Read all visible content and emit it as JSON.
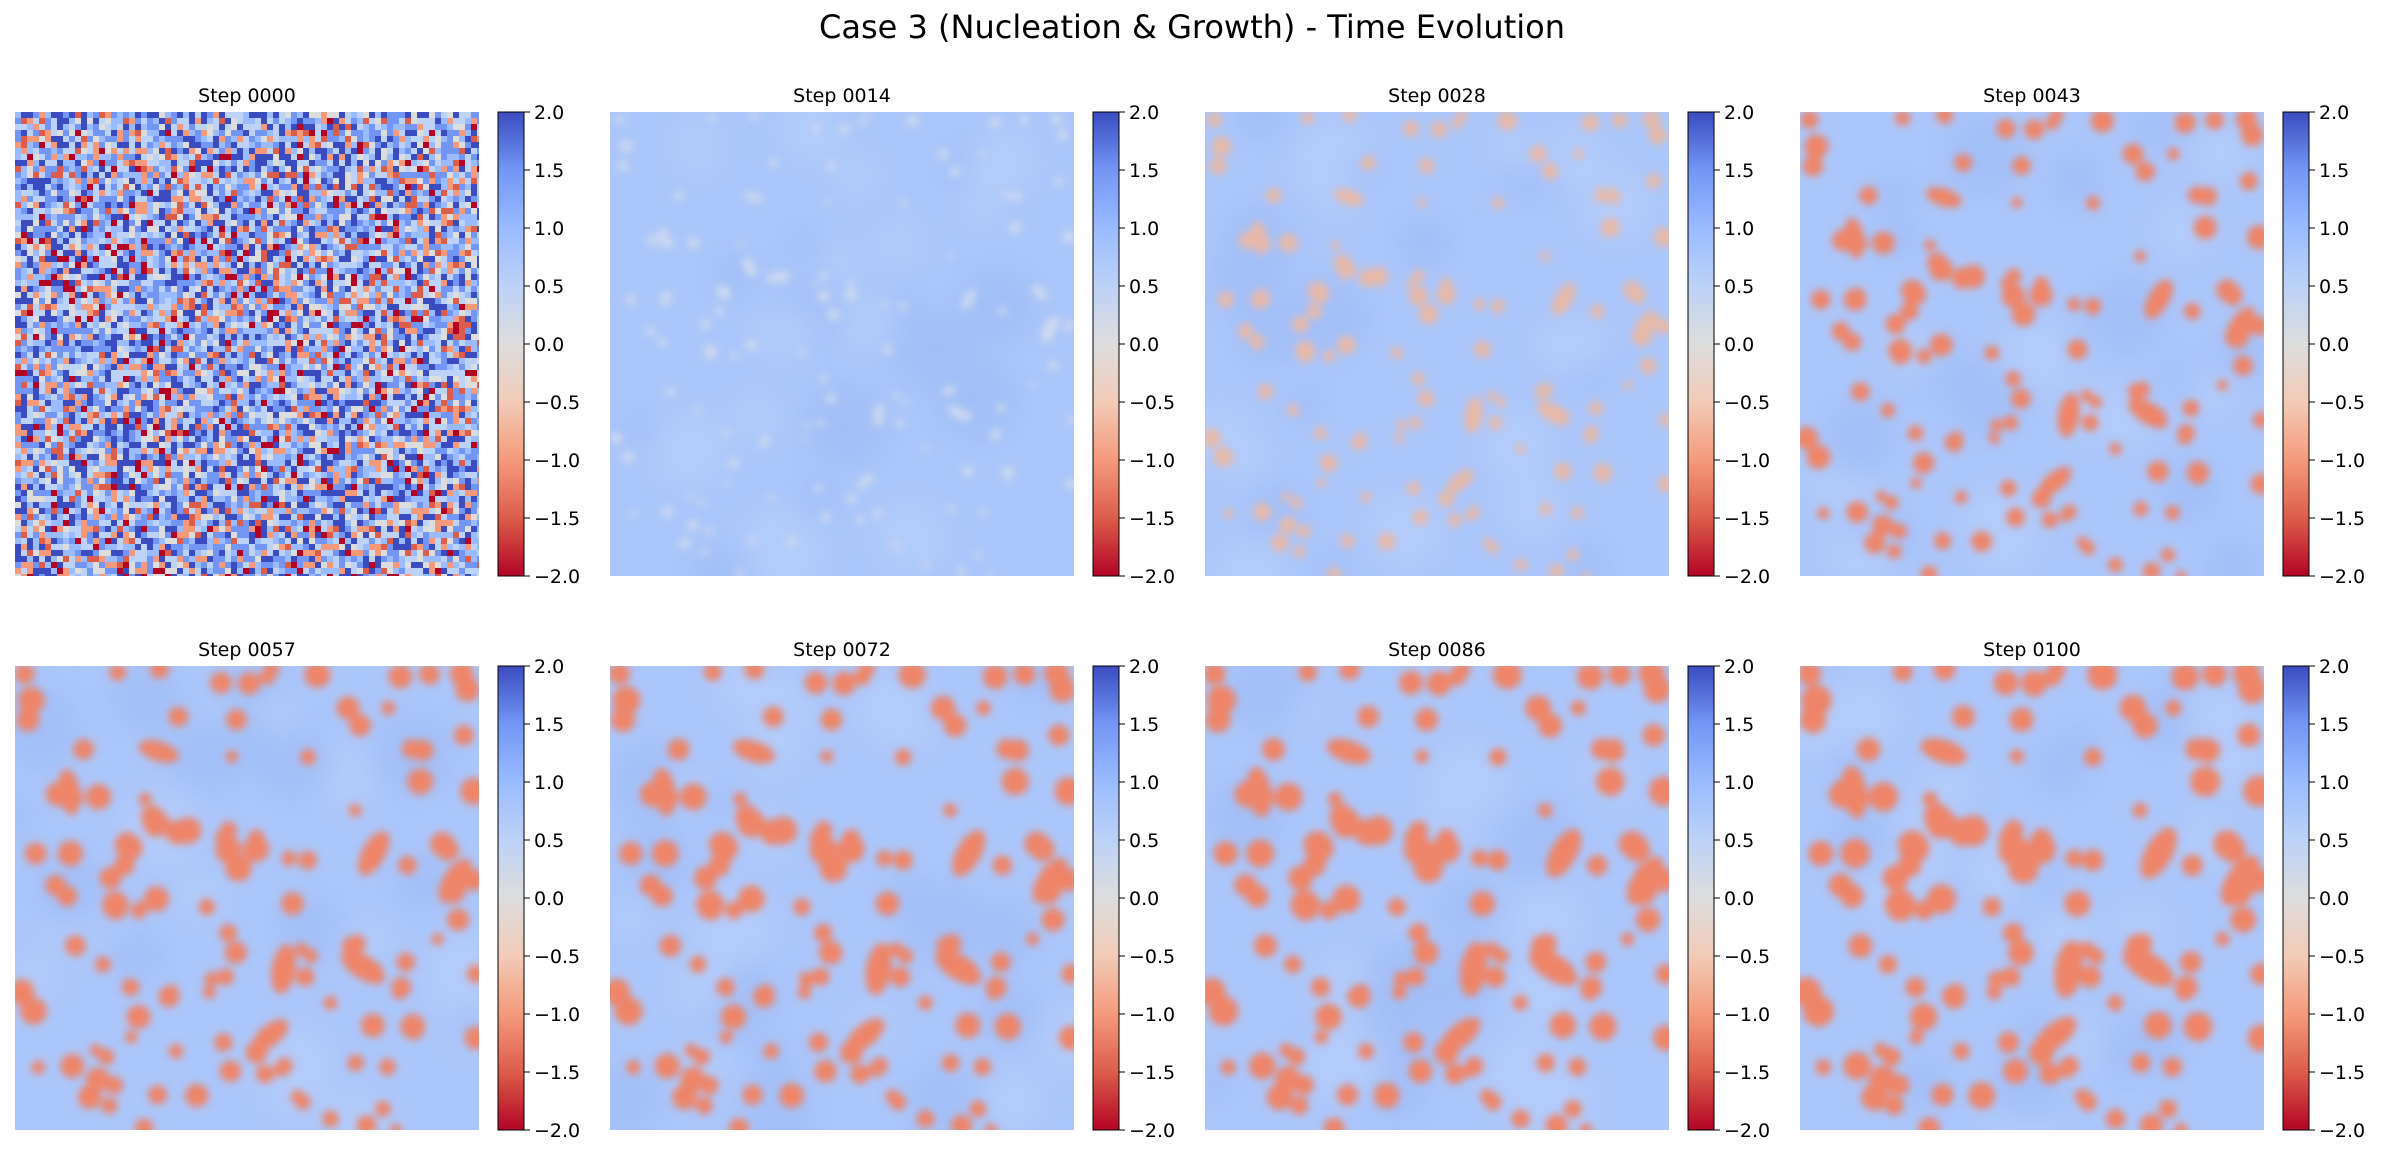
{
  "figure": {
    "title": "Case 3 (Nucleation & Growth) - Time Evolution"
  },
  "colors": {
    "colormap": "coolwarm_r",
    "colormap_stops": [
      "#b40426",
      "#dc5d4a",
      "#f49a7b",
      "#f2cbb7",
      "#dddddd",
      "#bcd2f7",
      "#9abbff",
      "#7396f5",
      "#3b4cc0"
    ],
    "background_phase": "#abc6fa",
    "particle": "#ee8468"
  },
  "chart_data": [
    {
      "type": "heatmap",
      "title": "Step 0000",
      "state": "random noise",
      "colorbar": {
        "vmin": -2.0,
        "vmax": 2.0,
        "ticks": [
          "2.0",
          "1.5",
          "1.0",
          "0.5",
          "0.0",
          "−0.5",
          "−1.0",
          "−1.5",
          "−2.0"
        ]
      },
      "grid": false
    },
    {
      "type": "heatmap",
      "title": "Step 0014",
      "state": "early nucleation",
      "colorbar": {
        "vmin": -2.0,
        "vmax": 2.0,
        "ticks": [
          "2.0",
          "1.5",
          "1.0",
          "0.5",
          "0.0",
          "−0.5",
          "−1.0",
          "−1.5",
          "−2.0"
        ]
      },
      "grid": false
    },
    {
      "type": "heatmap",
      "title": "Step 0028",
      "state": "nucleation",
      "colorbar": {
        "vmin": -2.0,
        "vmax": 2.0,
        "ticks": [
          "2.0",
          "1.5",
          "1.0",
          "0.5",
          "0.0",
          "−0.5",
          "−1.0",
          "−1.5",
          "−2.0"
        ]
      },
      "grid": false
    },
    {
      "type": "heatmap",
      "title": "Step 0043",
      "state": "growth",
      "colorbar": {
        "vmin": -2.0,
        "vmax": 2.0,
        "ticks": [
          "2.0",
          "1.5",
          "1.0",
          "0.5",
          "0.0",
          "−0.5",
          "−1.0",
          "−1.5",
          "−2.0"
        ]
      },
      "grid": false
    },
    {
      "type": "heatmap",
      "title": "Step 0057",
      "state": "growth",
      "colorbar": {
        "vmin": -2.0,
        "vmax": 2.0,
        "ticks": [
          "2.0",
          "1.5",
          "1.0",
          "0.5",
          "0.0",
          "−0.5",
          "−1.0",
          "−1.5",
          "−2.0"
        ]
      },
      "grid": false
    },
    {
      "type": "heatmap",
      "title": "Step 0072",
      "state": "growth",
      "colorbar": {
        "vmin": -2.0,
        "vmax": 2.0,
        "ticks": [
          "2.0",
          "1.5",
          "1.0",
          "0.5",
          "0.0",
          "−0.5",
          "−1.0",
          "−1.5",
          "−2.0"
        ]
      },
      "grid": false
    },
    {
      "type": "heatmap",
      "title": "Step 0086",
      "state": "growth",
      "colorbar": {
        "vmin": -2.0,
        "vmax": 2.0,
        "ticks": [
          "2.0",
          "1.5",
          "1.0",
          "0.5",
          "0.0",
          "−0.5",
          "−1.0",
          "−1.5",
          "−2.0"
        ]
      },
      "grid": false
    },
    {
      "type": "heatmap",
      "title": "Step 0100",
      "state": "growth",
      "colorbar": {
        "vmin": -2.0,
        "vmax": 2.0,
        "ticks": [
          "2.0",
          "1.5",
          "1.0",
          "0.5",
          "0.0",
          "−0.5",
          "−1.0",
          "−1.5",
          "−2.0"
        ]
      },
      "grid": false
    }
  ]
}
